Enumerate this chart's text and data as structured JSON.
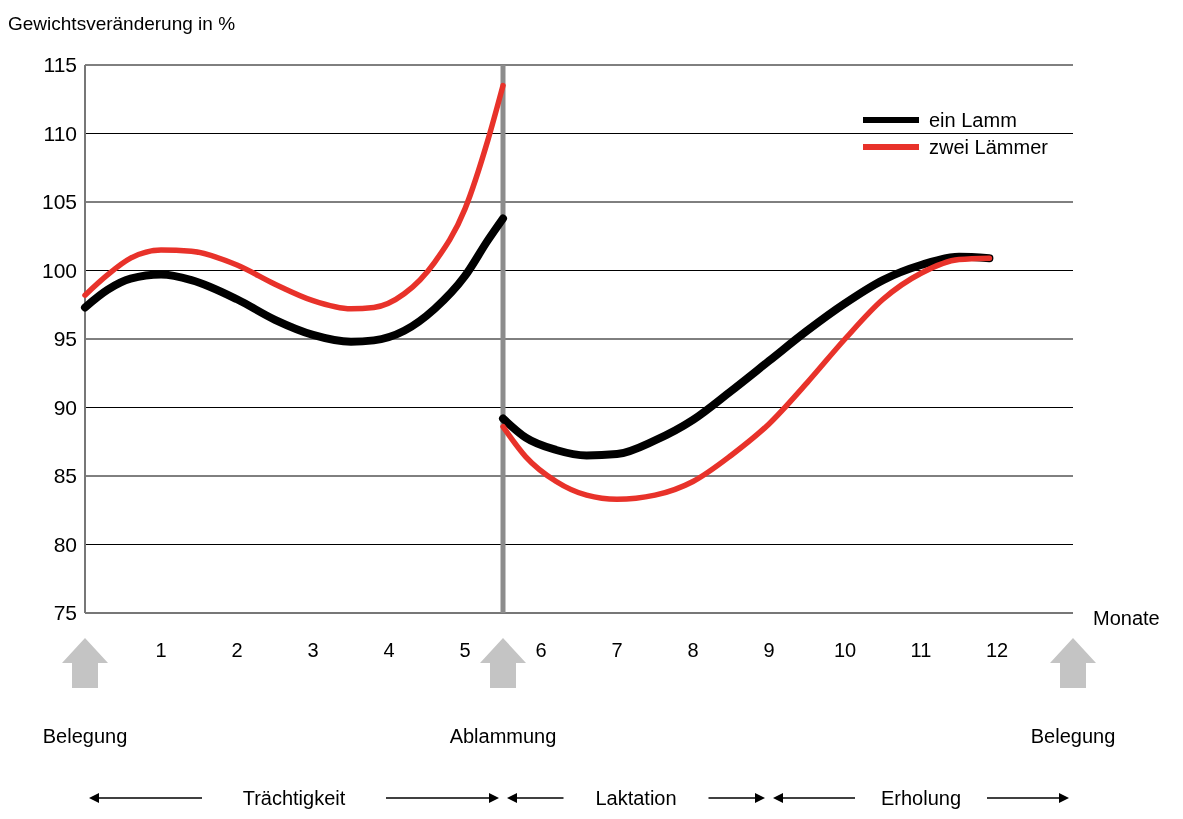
{
  "chart_data": {
    "type": "line",
    "ylabel": "Gewichtsveränderung in %",
    "xlabel": "Monate",
    "xlim": [
      0,
      13
    ],
    "xticks": [
      1,
      2,
      3,
      4,
      5,
      6,
      7,
      8,
      9,
      10,
      11,
      12
    ],
    "ylim": [
      75,
      115
    ],
    "yticks": [
      75,
      80,
      85,
      90,
      95,
      100,
      105,
      110,
      115
    ],
    "grid": "y",
    "legend": "top right",
    "marker": "none",
    "line_style": "solid",
    "series": [
      {
        "name": "ein Lamm",
        "color": "#000000",
        "x": [
          0,
          0.3,
          0.6,
          1.0,
          1.4,
          2.0,
          2.5,
          3.0,
          3.5,
          3.8,
          4.2,
          4.6,
          5.0,
          5.3,
          5.5,
          null,
          5.5,
          5.8,
          6.2,
          6.6,
          7.0,
          7.5,
          8.0,
          8.5,
          9.0,
          9.5,
          10.0,
          10.5,
          11.0,
          11.5,
          11.9
        ],
        "values": [
          97.3,
          98.6,
          99.4,
          99.7,
          99.3,
          97.9,
          96.4,
          95.3,
          94.8,
          94.9,
          95.6,
          97.2,
          99.6,
          102.2,
          103.8,
          null,
          89.2,
          87.8,
          86.9,
          86.5,
          86.6,
          87.6,
          89.1,
          91.2,
          93.4,
          95.6,
          97.6,
          99.3,
          100.4,
          101.0,
          100.9
        ]
      },
      {
        "name": "zwei Lämmer",
        "color": "#e8322a",
        "x": [
          0,
          0.3,
          0.6,
          1.0,
          1.4,
          2.0,
          2.5,
          3.0,
          3.5,
          3.8,
          4.2,
          4.6,
          5.0,
          5.3,
          5.5,
          null,
          5.5,
          5.8,
          6.2,
          6.6,
          7.0,
          7.5,
          8.0,
          8.5,
          9.0,
          9.5,
          10.0,
          10.5,
          11.0,
          11.5,
          11.9
        ],
        "values": [
          98.2,
          99.7,
          100.9,
          101.5,
          101.4,
          100.4,
          99.0,
          97.8,
          97.2,
          97.3,
          98.3,
          100.6,
          104.5,
          109.5,
          113.5,
          null,
          88.6,
          86.4,
          84.6,
          83.6,
          83.3,
          83.6,
          84.6,
          86.5,
          88.8,
          91.8,
          95.0,
          97.9,
          99.8,
          100.8,
          100.9
        ]
      }
    ],
    "ref_lines": [
      {
        "axis": "x",
        "value": 5.5,
        "color": "#8c8c8c"
      }
    ],
    "annotations": [
      "Belegung",
      "Ablammung",
      "Belegung",
      "Trächtigkeit",
      "Laktation",
      "Erholung"
    ]
  }
}
